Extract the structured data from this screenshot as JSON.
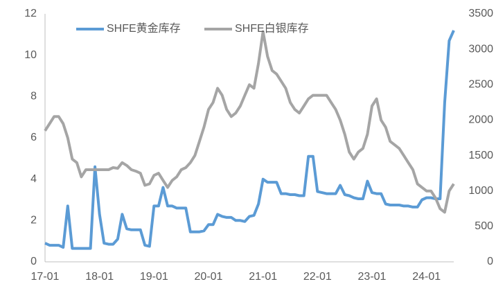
{
  "chart_data": {
    "type": "line",
    "categories": [
      "17-01",
      null,
      null,
      null,
      null,
      null,
      null,
      null,
      null,
      null,
      null,
      null,
      "18-01",
      null,
      null,
      null,
      null,
      null,
      null,
      null,
      null,
      null,
      null,
      null,
      "19-01",
      null,
      null,
      null,
      null,
      null,
      null,
      null,
      null,
      null,
      null,
      null,
      "20-01",
      null,
      null,
      null,
      null,
      null,
      null,
      null,
      null,
      null,
      null,
      null,
      "21-01",
      null,
      null,
      null,
      null,
      null,
      null,
      null,
      null,
      null,
      null,
      null,
      "22-01",
      null,
      null,
      null,
      null,
      null,
      null,
      null,
      null,
      null,
      null,
      null,
      "23-01",
      null,
      null,
      null,
      null,
      null,
      null,
      null,
      null,
      null,
      null,
      null,
      "24-01",
      null,
      null,
      null,
      null,
      null,
      null
    ],
    "series": [
      {
        "name": "SHFE黄金库存",
        "color": "#5b9bd5",
        "axis": "y",
        "values": [
          0.9,
          0.8,
          0.8,
          0.8,
          0.7,
          2.7,
          0.65,
          0.65,
          0.65,
          0.65,
          0.65,
          4.6,
          2.3,
          0.9,
          0.85,
          0.85,
          1.1,
          2.3,
          1.6,
          1.55,
          1.55,
          1.55,
          0.8,
          0.75,
          2.7,
          2.7,
          3.6,
          2.7,
          2.7,
          2.6,
          2.6,
          2.6,
          1.45,
          1.45,
          1.45,
          1.5,
          1.8,
          1.8,
          2.3,
          2.2,
          2.15,
          2.15,
          2.0,
          2.0,
          1.95,
          2.2,
          2.25,
          2.8,
          4.0,
          3.85,
          3.85,
          3.85,
          3.3,
          3.3,
          3.25,
          3.25,
          3.2,
          3.2,
          5.1,
          5.1,
          3.4,
          3.35,
          3.3,
          3.3,
          3.3,
          3.7,
          3.25,
          3.2,
          3.1,
          3.05,
          3.05,
          3.9,
          3.35,
          3.3,
          3.3,
          2.8,
          2.75,
          2.75,
          2.75,
          2.7,
          2.7,
          2.65,
          2.65,
          3.0,
          3.1,
          3.1,
          3.05,
          3.05,
          7.7,
          10.7,
          11.2
        ]
      },
      {
        "name": "SHFE白银库存",
        "color": "#a5a5a5",
        "axis": "y2",
        "values": [
          1850,
          1950,
          2050,
          2050,
          1950,
          1750,
          1450,
          1400,
          1200,
          1300,
          1300,
          1300,
          1300,
          1300,
          1300,
          1330,
          1320,
          1400,
          1360,
          1300,
          1280,
          1250,
          1080,
          1100,
          1220,
          1250,
          1150,
          1050,
          1150,
          1200,
          1300,
          1330,
          1400,
          1500,
          1700,
          1900,
          2150,
          2250,
          2450,
          2350,
          2150,
          2050,
          2100,
          2200,
          2350,
          2500,
          2450,
          2800,
          3250,
          2900,
          2700,
          2650,
          2550,
          2450,
          2250,
          2150,
          2100,
          2200,
          2300,
          2350,
          2350,
          2350,
          2350,
          2250,
          2150,
          2000,
          1800,
          1550,
          1450,
          1550,
          1600,
          1800,
          2200,
          2300,
          2000,
          1900,
          1700,
          1650,
          1600,
          1500,
          1400,
          1300,
          1100,
          1050,
          1000,
          1000,
          900,
          750,
          700,
          1000,
          1100
        ]
      }
    ],
    "ylim": [
      0,
      12
    ],
    "yticks": [
      0,
      2,
      4,
      6,
      8,
      10,
      12
    ],
    "y2lim": [
      0,
      3500
    ],
    "y2ticks": [
      0,
      500,
      1000,
      1500,
      2000,
      2500,
      3000,
      3500
    ],
    "grid": false,
    "legend": "top"
  }
}
